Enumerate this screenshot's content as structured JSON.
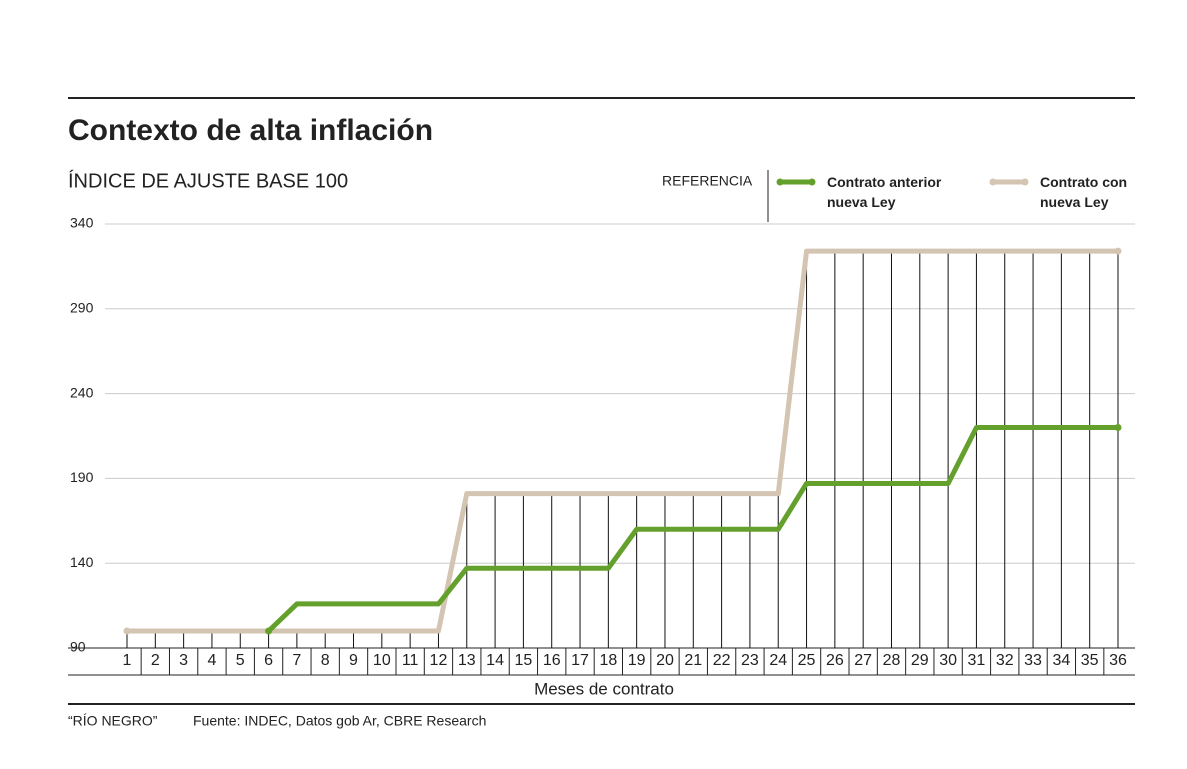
{
  "chart_data": {
    "type": "line",
    "title": "Contexto de alta inflación",
    "y_label": "ÍNDICE DE AJUSTE BASE 100",
    "legend_title": "REFERENCIA",
    "x_label": "Meses de contrato",
    "credit": "“RÍO NEGRO”",
    "source": "Fuente: INDEC, Datos gob Ar, CBRE Research",
    "categories": [
      "1",
      "2",
      "3",
      "4",
      "5",
      "6",
      "7",
      "8",
      "9",
      "10",
      "11",
      "12",
      "13",
      "14",
      "15",
      "16",
      "17",
      "18",
      "19",
      "20",
      "21",
      "22",
      "23",
      "24",
      "25",
      "26",
      "27",
      "28",
      "29",
      "30",
      "31",
      "32",
      "33",
      "34",
      "35",
      "36"
    ],
    "series": [
      {
        "name": "Contrato anterior nueva Ley",
        "color": "#64a02c",
        "values": [
          null,
          null,
          null,
          null,
          null,
          100,
          116,
          116,
          116,
          116,
          116,
          116,
          137,
          137,
          137,
          137,
          137,
          137,
          160,
          160,
          160,
          160,
          160,
          160,
          187,
          187,
          187,
          187,
          187,
          187,
          220,
          220,
          220,
          220,
          220,
          220
        ]
      },
      {
        "name": "Contrato con nueva Ley",
        "color": "#d4c4b2",
        "values": [
          100,
          100,
          100,
          100,
          100,
          100,
          100,
          100,
          100,
          100,
          100,
          100,
          181,
          181,
          181,
          181,
          181,
          181,
          181,
          181,
          181,
          181,
          181,
          181,
          324,
          324,
          324,
          324,
          324,
          324,
          324,
          324,
          324,
          324,
          324,
          324
        ]
      }
    ],
    "ylim": [
      90,
      340
    ],
    "yticks": [
      90,
      140,
      190,
      240,
      290,
      340
    ],
    "grid": true
  }
}
